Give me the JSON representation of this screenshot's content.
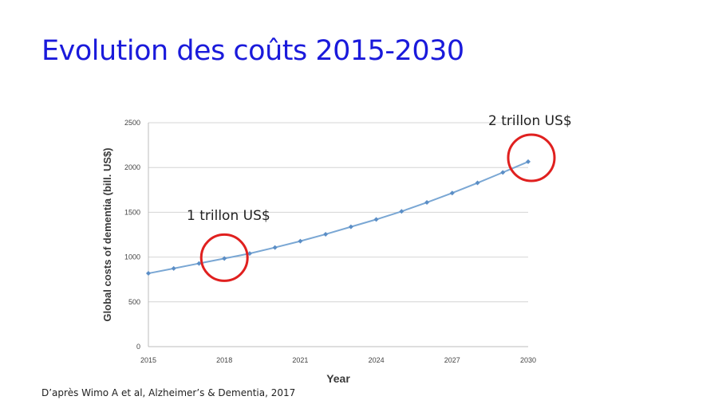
{
  "slide": {
    "title": "Evolution des coûts 2015-2030",
    "source": "D’après Wimo A et al, Alzheimer’s & Dementia, 2017"
  },
  "chart_data": {
    "type": "line",
    "title": "",
    "xlabel": "Year",
    "ylabel": "Global costs of dementia (bill. US$)",
    "xlim": [
      2015,
      2030
    ],
    "ylim": [
      0,
      2500
    ],
    "xticks": [
      2015,
      2018,
      2021,
      2024,
      2027,
      2030
    ],
    "yticks": [
      0,
      500,
      1000,
      1500,
      2000,
      2500
    ],
    "grid": true,
    "legend": "none",
    "color": "#7aa7d4",
    "x": [
      2015,
      2016,
      2017,
      2018,
      2019,
      2020,
      2021,
      2022,
      2023,
      2024,
      2025,
      2026,
      2027,
      2028,
      2029,
      2030
    ],
    "values": [
      818,
      873,
      929,
      984,
      1040,
      1107,
      1178,
      1255,
      1338,
      1420,
      1510,
      1610,
      1715,
      1828,
      1945,
      2065
    ],
    "annotations": [
      {
        "text": "1 trillon US$",
        "x": 2018,
        "y": 984,
        "circle_color": "#e0201f"
      },
      {
        "text": "2 trillon US$",
        "x": 2030,
        "y": 2065,
        "circle_color": "#e0201f"
      }
    ]
  }
}
